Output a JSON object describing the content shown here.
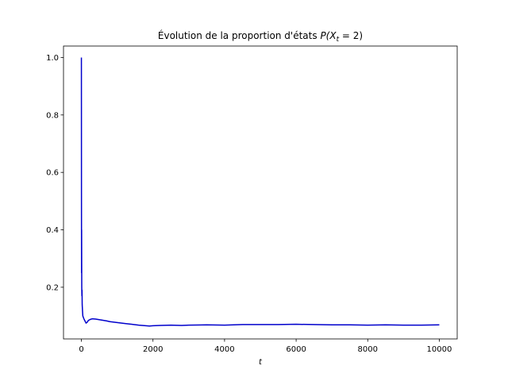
{
  "chart_data": {
    "type": "line",
    "title": {
      "prefix": "Évolution de la proportion d'états ",
      "math": "P(X",
      "sub": "t",
      "suffix": " = 2)"
    },
    "xlabel": "t",
    "ylabel": "",
    "xlim": [
      -500,
      10500
    ],
    "ylim": [
      0.02,
      1.04
    ],
    "xticks": [
      0,
      2000,
      4000,
      6000,
      8000,
      10000
    ],
    "xtick_labels": [
      "0",
      "2000",
      "4000",
      "6000",
      "8000",
      "10000"
    ],
    "yticks": [
      0.2,
      0.4,
      0.6,
      0.8,
      1.0
    ],
    "ytick_labels": [
      "0.2",
      "0.4",
      "0.6",
      "0.8",
      "1.0"
    ],
    "grid": false,
    "series": [
      {
        "color": "#0000cc",
        "x": [
          0,
          2,
          4,
          6,
          8,
          10,
          14,
          18,
          22,
          30,
          40,
          55,
          70,
          90,
          110,
          130,
          160,
          200,
          250,
          300,
          400,
          500,
          600,
          700,
          800,
          1000,
          1200,
          1400,
          1600,
          1800,
          1900,
          2000,
          2200,
          2500,
          2800,
          3000,
          3500,
          4000,
          4500,
          5000,
          5500,
          6000,
          6500,
          7000,
          7500,
          8000,
          8500,
          9000,
          9500,
          10000
        ],
        "y": [
          1.0,
          0.5,
          0.25,
          0.4,
          0.28,
          0.2,
          0.17,
          0.19,
          0.14,
          0.12,
          0.1,
          0.095,
          0.09,
          0.085,
          0.08,
          0.075,
          0.078,
          0.085,
          0.088,
          0.09,
          0.089,
          0.087,
          0.085,
          0.083,
          0.08,
          0.077,
          0.074,
          0.071,
          0.068,
          0.066,
          0.065,
          0.066,
          0.067,
          0.068,
          0.067,
          0.068,
          0.069,
          0.068,
          0.07,
          0.07,
          0.07,
          0.071,
          0.07,
          0.069,
          0.069,
          0.068,
          0.069,
          0.068,
          0.068,
          0.069
        ]
      }
    ]
  }
}
